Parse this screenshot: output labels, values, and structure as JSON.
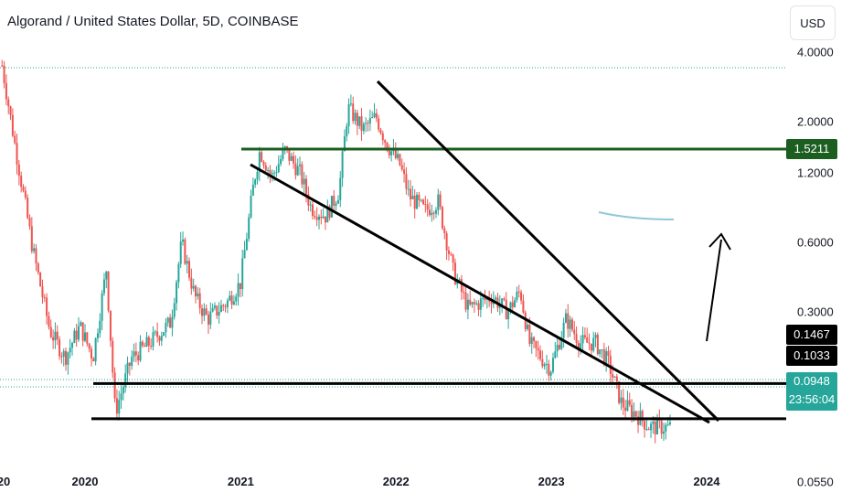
{
  "title": "Algorand / United States Dollar, 5D, COINBASE",
  "currency_label": "USD",
  "chart_data": {
    "type": "candlestick",
    "title": "Algorand / United States Dollar, 5D, COINBASE",
    "yscale": "log",
    "y_ticks": [
      "4.0000",
      "2.0000",
      "1.2000",
      "0.6000",
      "0.3000",
      "0.0550"
    ],
    "x_ticks": [
      "2020",
      "2021",
      "2022",
      "2023",
      "2024"
    ],
    "x_edge_label": "20",
    "price_badges": [
      {
        "label": "1.5211",
        "color": "#1b5e20"
      },
      {
        "label": "0.1467",
        "color": "#000000"
      },
      {
        "label": "0.1033",
        "color": "#000000"
      },
      {
        "label": "0.0948",
        "color": "#26a69a",
        "countdown": "23:56:04"
      }
    ],
    "horizontal_levels": [
      1.5211,
      0.1467,
      0.1033
    ],
    "last_price": 0.0948,
    "colors": {
      "up": "#26a69a",
      "down": "#ef5350",
      "level_green": "#1b5e20",
      "annotation": "#000000",
      "brush": "#90c7dc"
    },
    "price_path": [
      [
        "2019-06-20",
        3.5
      ],
      [
        "2019-07-20",
        1.6
      ],
      [
        "2019-09-01",
        0.55
      ],
      [
        "2019-10-10",
        0.25
      ],
      [
        "2019-11-15",
        0.19
      ],
      [
        "2019-12-20",
        0.26
      ],
      [
        "2020-01-20",
        0.19
      ],
      [
        "2020-02-20",
        0.46
      ],
      [
        "2020-03-12",
        0.11
      ],
      [
        "2020-04-20",
        0.19
      ],
      [
        "2020-06-01",
        0.22
      ],
      [
        "2020-07-20",
        0.27
      ],
      [
        "2020-08-15",
        0.6
      ],
      [
        "2020-09-15",
        0.35
      ],
      [
        "2020-10-15",
        0.28
      ],
      [
        "2020-11-30",
        0.33
      ],
      [
        "2020-12-31",
        0.4
      ],
      [
        "2021-02-01",
        1.1
      ],
      [
        "2021-02-15",
        1.5
      ],
      [
        "2021-03-15",
        1.15
      ],
      [
        "2021-04-15",
        1.5
      ],
      [
        "2021-05-20",
        1.2
      ],
      [
        "2021-06-15",
        0.85
      ],
      [
        "2021-07-20",
        0.78
      ],
      [
        "2021-08-20",
        1.0
      ],
      [
        "2021-09-10",
        2.3
      ],
      [
        "2021-10-15",
        1.85
      ],
      [
        "2021-11-15",
        2.1
      ],
      [
        "2021-12-10",
        1.6
      ],
      [
        "2022-01-10",
        1.3
      ],
      [
        "2022-02-01",
        0.95
      ],
      [
        "2022-03-10",
        0.82
      ],
      [
        "2022-04-10",
        0.9
      ],
      [
        "2022-05-15",
        0.45
      ],
      [
        "2022-06-20",
        0.31
      ],
      [
        "2022-08-15",
        0.35
      ],
      [
        "2022-09-20",
        0.3
      ],
      [
        "2022-10-20",
        0.37
      ],
      [
        "2022-11-10",
        0.22
      ],
      [
        "2022-12-30",
        0.17
      ],
      [
        "2023-02-05",
        0.28
      ],
      [
        "2023-03-10",
        0.22
      ],
      [
        "2023-04-15",
        0.22
      ],
      [
        "2023-05-15",
        0.18
      ],
      [
        "2023-06-15",
        0.12
      ],
      [
        "2023-07-15",
        0.11
      ],
      [
        "2023-08-20",
        0.095
      ],
      [
        "2023-10-10",
        0.0948
      ]
    ]
  }
}
